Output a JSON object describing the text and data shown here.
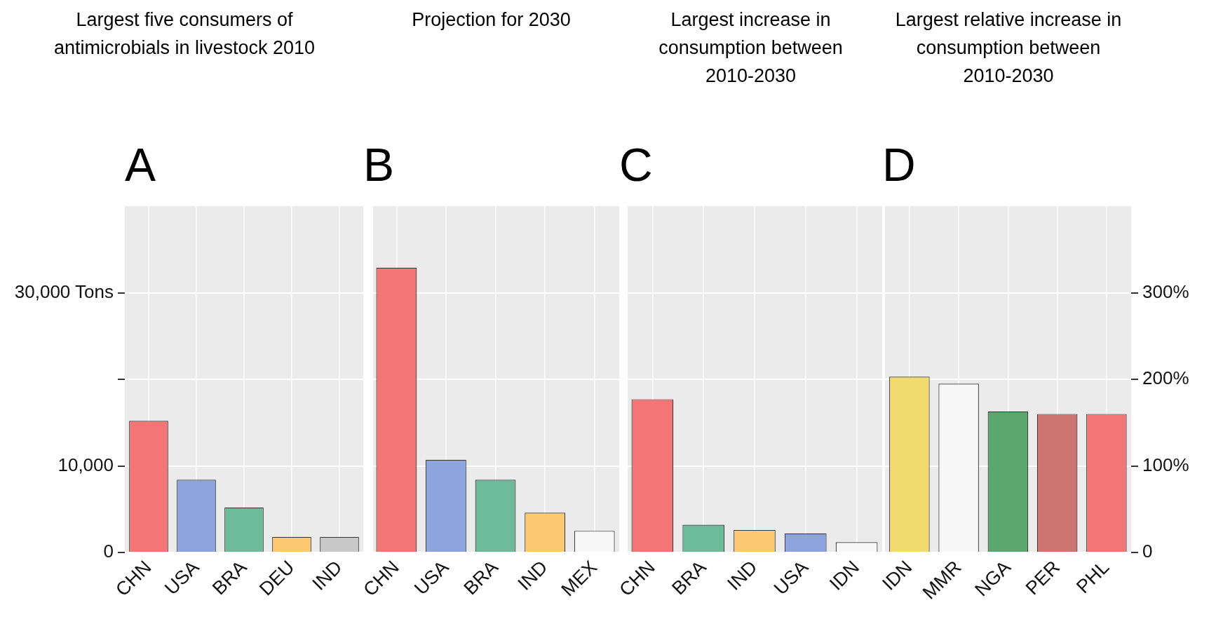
{
  "chart_data": [
    {
      "type": "bar",
      "title": "Largest five consumers of antimicrobials in livestock 2010",
      "subtitle": "A",
      "categories": [
        "CHN",
        "USA",
        "BRA",
        "DEU",
        "IND"
      ],
      "values": [
        15200,
        8400,
        5200,
        1800,
        1800
      ],
      "colors": [
        "#f47575",
        "#8ea4df",
        "#6dbb99",
        "#fcc870",
        "#c8c8c8"
      ],
      "ylim": [
        0,
        40000
      ],
      "yticks": [
        0,
        {
          "value": 10000,
          "label": "10,000"
        },
        {
          "value": 20000,
          "label": null
        },
        {
          "value": 30000,
          "label": "30,000 Tons"
        }
      ],
      "grid": true
    },
    {
      "type": "bar",
      "title": "Projection for 2030",
      "subtitle": "B",
      "categories": [
        "CHN",
        "USA",
        "BRA",
        "IND",
        "MEX"
      ],
      "values": [
        32900,
        10700,
        8400,
        4600,
        2500
      ],
      "colors": [
        "#f47575",
        "#8ea4df",
        "#6dbb99",
        "#fcc870",
        "#f7f7f7"
      ],
      "ylim": [
        0,
        40000
      ],
      "yticks": [
        0,
        10000,
        20000,
        30000
      ],
      "grid": true,
      "tick_labels": "x"
    },
    {
      "type": "bar",
      "title": "Largest increase in consumption between 2010-2030",
      "subtitle": "C",
      "categories": [
        "CHN",
        "BRA",
        "IND",
        "USA",
        "IDN"
      ],
      "values": [
        17700,
        3200,
        2600,
        2200,
        1200
      ],
      "colors": [
        "#f47575",
        "#6dbb99",
        "#fcc870",
        "#8ea4df",
        "#f7f7f7"
      ],
      "ylim": [
        0,
        40000
      ],
      "yticks": [
        0,
        10000,
        20000,
        30000
      ],
      "grid": true,
      "tick_labels": "x"
    },
    {
      "type": "bar",
      "title": "Largest relative increase in consumption between 2010-2030",
      "subtitle": "D",
      "categories": [
        "IDN",
        "MMR",
        "NGA",
        "PER",
        "PHL"
      ],
      "values": [
        203,
        195,
        163,
        160,
        160
      ],
      "colors": [
        "#f2db6e",
        "#f7f7f7",
        "#5aa870",
        "#cc7571",
        "#f47575"
      ],
      "ylim": [
        0,
        400
      ],
      "yticks": [
        0,
        {
          "value": 100,
          "label": "100%"
        },
        {
          "value": 200,
          "label": "200%"
        },
        {
          "value": 300,
          "label": "300%"
        }
      ],
      "grid": true
    }
  ]
}
